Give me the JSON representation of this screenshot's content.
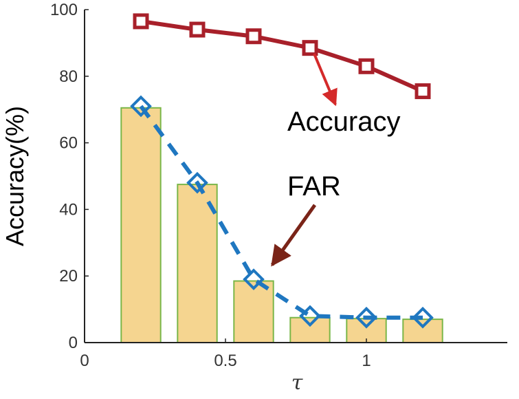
{
  "chart_data": {
    "type": "bar+line",
    "xlabel": "τ",
    "ylabel": "Accuracy(%)",
    "xlim": [
      0,
      1.5
    ],
    "ylim": [
      0,
      100
    ],
    "xticks": [
      "0",
      "0.5",
      "1"
    ],
    "xtick_values": [
      0,
      0.5,
      1
    ],
    "yticks": [
      "0",
      "20",
      "40",
      "60",
      "80",
      "100"
    ],
    "ytick_values": [
      0,
      20,
      40,
      60,
      80,
      100
    ],
    "x": [
      0.2,
      0.4,
      0.6,
      0.8,
      1.0,
      1.2
    ],
    "bars": {
      "name": "FAR",
      "values": [
        70.5,
        47.5,
        18.5,
        7.5,
        7.2,
        7.0
      ],
      "fill": "#f5d590",
      "stroke": "#7ab648"
    },
    "series": [
      {
        "name": "Accuracy",
        "values": [
          96.5,
          94.0,
          92.0,
          88.5,
          83.0,
          75.5
        ],
        "color": "#a8202a",
        "marker": "square",
        "linestyle": "solid"
      },
      {
        "name": "FAR",
        "values": [
          71.0,
          48.0,
          19.0,
          8.0,
          7.5,
          7.5
        ],
        "color": "#1f77c0",
        "marker": "diamond",
        "linestyle": "dashed"
      }
    ],
    "annotations": [
      {
        "text": "Accuracy",
        "target_series": "Accuracy",
        "arrow_color": "#d42a2a"
      },
      {
        "text": "FAR",
        "target_series": "FAR",
        "arrow_color": "#7a2418"
      }
    ]
  }
}
